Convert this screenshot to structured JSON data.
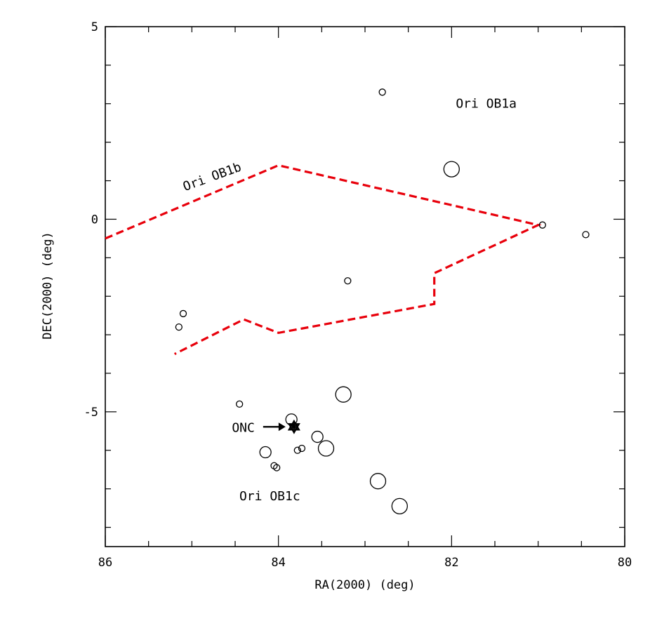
{
  "chart_data": {
    "type": "scatter",
    "title": "",
    "xlabel": "RA(2000) (deg)",
    "ylabel": "DEC(2000) (deg)",
    "xlim": [
      86,
      80
    ],
    "ylim": [
      -8.5,
      5
    ],
    "x_ticks": [
      86,
      84,
      82,
      80
    ],
    "y_ticks": [
      -5,
      0,
      5
    ],
    "grid": false,
    "series": [
      {
        "name": "stars-small",
        "points": [
          {
            "x": 82.8,
            "y": 3.3
          },
          {
            "x": 80.95,
            "y": -0.15
          },
          {
            "x": 80.45,
            "y": -0.4
          },
          {
            "x": 83.2,
            "y": -1.6
          },
          {
            "x": 85.1,
            "y": -2.45
          },
          {
            "x": 85.15,
            "y": -2.8
          },
          {
            "x": 84.45,
            "y": -4.8
          },
          {
            "x": 84.05,
            "y": -6.4
          },
          {
            "x": 84.02,
            "y": -6.45
          },
          {
            "x": 83.78,
            "y": -6.0
          },
          {
            "x": 83.73,
            "y": -5.95
          }
        ]
      },
      {
        "name": "stars-medium",
        "points": [
          {
            "x": 83.85,
            "y": -5.2
          },
          {
            "x": 83.55,
            "y": -5.65
          },
          {
            "x": 84.15,
            "y": -6.05
          }
        ]
      },
      {
        "name": "stars-large",
        "points": [
          {
            "x": 82.0,
            "y": 1.3
          },
          {
            "x": 83.25,
            "y": -4.55
          },
          {
            "x": 83.45,
            "y": -5.95
          },
          {
            "x": 82.85,
            "y": -6.8
          },
          {
            "x": 82.6,
            "y": -7.45
          }
        ]
      }
    ],
    "boundary": {
      "name": "Ori OB1b boundary",
      "color": "#e8000b",
      "points": [
        {
          "x": 86,
          "y": -0.5
        },
        {
          "x": 84.0,
          "y": 1.4
        },
        {
          "x": 81.0,
          "y": -0.15
        },
        {
          "x": 82.2,
          "y": -1.4
        },
        {
          "x": 82.2,
          "y": -2.2
        },
        {
          "x": 84.0,
          "y": -2.95
        },
        {
          "x": 84.4,
          "y": -2.6
        },
        {
          "x": 85.2,
          "y": -3.5
        }
      ]
    },
    "onc": {
      "x": 83.82,
      "y": -5.39,
      "label": "ONC"
    },
    "annotations": [
      {
        "text": "Ori OB1a",
        "x": 81.6,
        "y": 2.9,
        "rotate": 0
      },
      {
        "text": "Ori OB1b",
        "x": 84.75,
        "y": 1.0,
        "rotate": -20
      },
      {
        "text": "Ori OB1c",
        "x": 84.1,
        "y": -7.3,
        "rotate": 0
      }
    ]
  }
}
